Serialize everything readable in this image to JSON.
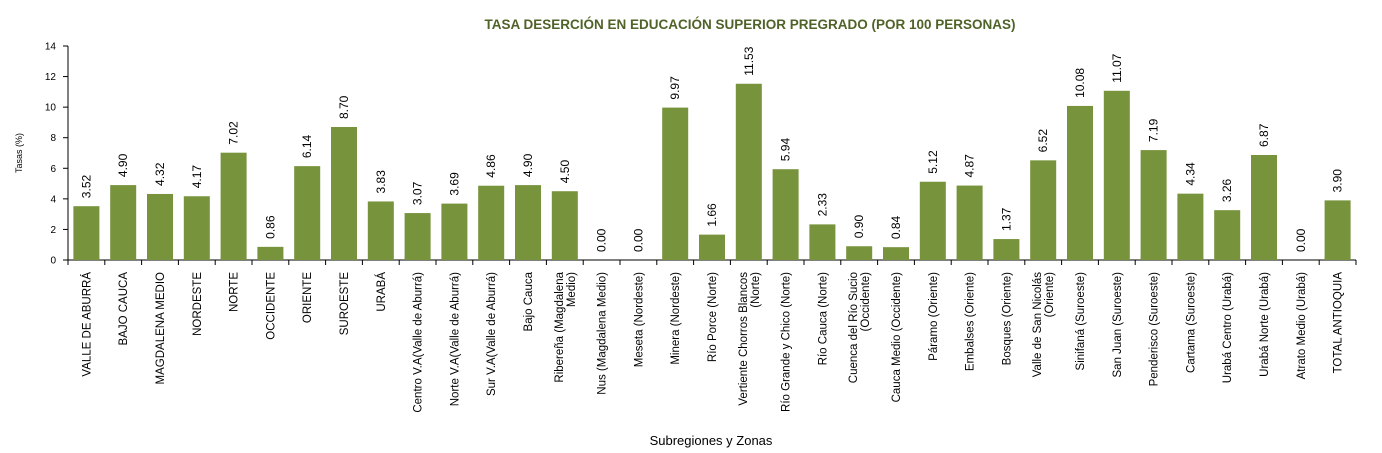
{
  "chart_data": {
    "type": "bar",
    "title": "TASA DESERCIÓN EN EDUCACIÓN SUPERIOR PREGRADO (POR 100 PERSONAS)",
    "xlabel": "Subregiones y Zonas",
    "ylabel": "Tasas (%)",
    "ylim": [
      0,
      14
    ],
    "yticks": [
      0,
      2,
      4,
      6,
      8,
      10,
      12,
      14
    ],
    "grid": false,
    "bar_color": "#77933c",
    "title_color": "#4f6228",
    "categories": [
      [
        "VALLE DE ABURRÁ"
      ],
      [
        "BAJO CAUCA"
      ],
      [
        "MAGDALENA MEDIO"
      ],
      [
        "NORDESTE"
      ],
      [
        "NORTE"
      ],
      [
        "OCCIDENTE"
      ],
      [
        "ORIENTE"
      ],
      [
        "SUROESTE"
      ],
      [
        "URABÁ"
      ],
      [
        "Centro V.A(Valle de Aburrá)"
      ],
      [
        "Norte V.A(Valle de Aburrá)"
      ],
      [
        "Sur V.A(Valle de Aburrá)"
      ],
      [
        "Bajo Cauca"
      ],
      [
        "Ribereña (Magdalena",
        "Medio)"
      ],
      [
        "Nus (Magdalena Medio)"
      ],
      [
        "Meseta (Nordeste)"
      ],
      [
        "Minera (Nordeste)"
      ],
      [
        "Río Porce (Norte)"
      ],
      [
        "Vertiente Chorros Blancos",
        "(Norte)"
      ],
      [
        "Río Grande y Chico (Norte)"
      ],
      [
        "Río Cauca (Norte)"
      ],
      [
        "Cuenca del Río Sucio",
        "(Occidente)"
      ],
      [
        "Cauca Medio (Occidente)"
      ],
      [
        "Páramo (Oriente)"
      ],
      [
        "Embalses (Oriente)"
      ],
      [
        "Bosques (Oriente)"
      ],
      [
        "Valle de San Nicolás",
        "(Oriente)"
      ],
      [
        "Sinifaná (Suroeste)"
      ],
      [
        "San Juan (Suroeste)"
      ],
      [
        "Penderisco (Suroeste)"
      ],
      [
        "Cartama (Suroeste)"
      ],
      [
        "Urabá Centro (Urabá)"
      ],
      [
        "Urabá Norte (Urabá)"
      ],
      [
        "Atrato Medio (Urabá)"
      ],
      [
        "TOTAL ANTIOQUIA"
      ]
    ],
    "values": [
      3.52,
      4.9,
      4.32,
      4.17,
      7.02,
      0.86,
      6.14,
      8.7,
      3.83,
      3.07,
      3.69,
      4.86,
      4.9,
      4.5,
      0.0,
      0.0,
      9.97,
      1.66,
      11.53,
      5.94,
      2.33,
      0.9,
      0.84,
      5.12,
      4.87,
      1.37,
      6.52,
      10.08,
      11.07,
      7.19,
      4.34,
      3.26,
      6.87,
      0.0,
      3.9
    ],
    "value_labels": [
      "3.52",
      "4.90",
      "4.32",
      "4.17",
      "7.02",
      "0.86",
      "6.14",
      "8.70",
      "3.83",
      "3.07",
      "3.69",
      "4.86",
      "4.90",
      "4.50",
      "0.00",
      "0.00",
      "9.97",
      "1.66",
      "11.53",
      "5.94",
      "2.33",
      "0.90",
      "0.84",
      "5.12",
      "4.87",
      "1.37",
      "6.52",
      "10.08",
      "11.07",
      "7.19",
      "4.34",
      "3.26",
      "6.87",
      "0.00",
      "3.90"
    ]
  }
}
